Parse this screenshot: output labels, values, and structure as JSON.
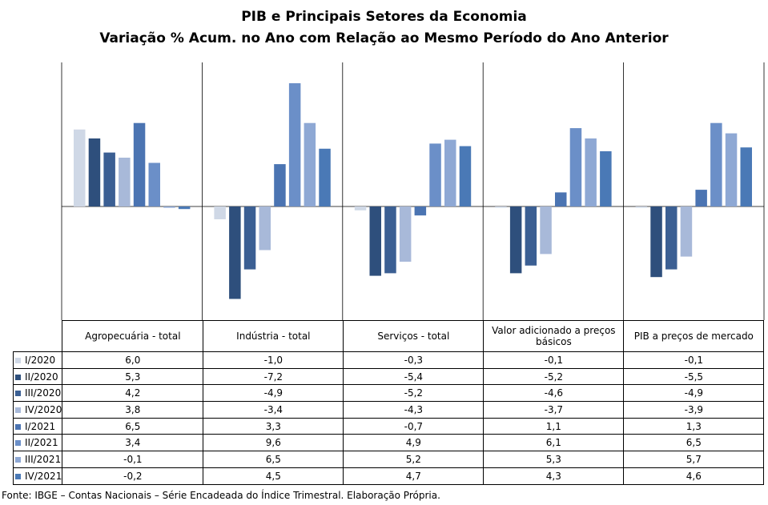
{
  "title": "PIB e Principais  Setores da Economia",
  "subtitle": "Variação % Acum. no Ano com Relação ao Mesmo Período do Ano Anterior",
  "source": "Fonte: IBGE – Contas Nacionais – Série Encadeada do Índice Trimestral. Elaboração Própria.",
  "chart_data": {
    "type": "bar",
    "title": "PIB e Principais  Setores da Economia",
    "subtitle": "Variação % Acum. no Ano com Relação ao Mesmo Período do Ano Anterior",
    "categories": [
      "Agropecuária - total",
      "Indústria - total",
      "Serviços - total",
      "Valor adicionado a preços básicos",
      "PIB a preços de mercado"
    ],
    "series": [
      {
        "name": "I/2020",
        "color": "#cfd8e6",
        "values": [
          6.0,
          -1.0,
          -0.3,
          -0.1,
          -0.1
        ],
        "labels": [
          "6,0",
          "-1,0",
          "-0,3",
          "-0,1",
          "-0,1"
        ]
      },
      {
        "name": "II/2020",
        "color": "#2e4f7c",
        "values": [
          5.3,
          -7.2,
          -5.4,
          -5.2,
          -5.5
        ],
        "labels": [
          "5,3",
          "-7,2",
          "-5,4",
          "-5,2",
          "-5,5"
        ]
      },
      {
        "name": "III/2020",
        "color": "#3b5f93",
        "values": [
          4.2,
          -4.9,
          -5.2,
          -4.6,
          -4.9
        ],
        "labels": [
          "4,2",
          "-4,9",
          "-5,2",
          "-4,6",
          "-4,9"
        ]
      },
      {
        "name": "IV/2020",
        "color": "#a8b9d9",
        "values": [
          3.8,
          -3.4,
          -4.3,
          -3.7,
          -3.9
        ],
        "labels": [
          "3,8",
          "-3,4",
          "-4,3",
          "-3,7",
          "-3,9"
        ]
      },
      {
        "name": "I/2021",
        "color": "#4b74b2",
        "values": [
          6.5,
          3.3,
          -0.7,
          1.1,
          1.3
        ],
        "labels": [
          "6,5",
          "3,3",
          "-0,7",
          "1,1",
          "1,3"
        ]
      },
      {
        "name": "II/2021",
        "color": "#6b8fc8",
        "values": [
          3.4,
          9.6,
          4.9,
          6.1,
          6.5
        ],
        "labels": [
          "3,4",
          "9,6",
          "4,9",
          "6,1",
          "6,5"
        ]
      },
      {
        "name": "III/2021",
        "color": "#8ea8d4",
        "values": [
          -0.1,
          6.5,
          5.2,
          5.3,
          5.7
        ],
        "labels": [
          "-0,1",
          "6,5",
          "5,2",
          "5,3",
          "5,7"
        ]
      },
      {
        "name": "IV/2021",
        "color": "#4a79b6",
        "values": [
          -0.2,
          4.5,
          4.7,
          4.3,
          4.6
        ],
        "labels": [
          "-0,2",
          "4,5",
          "4,7",
          "4,3",
          "4,6"
        ]
      }
    ],
    "ylim": [
      -8.5,
      10.0
    ],
    "grid": false,
    "legend": "table-left"
  }
}
